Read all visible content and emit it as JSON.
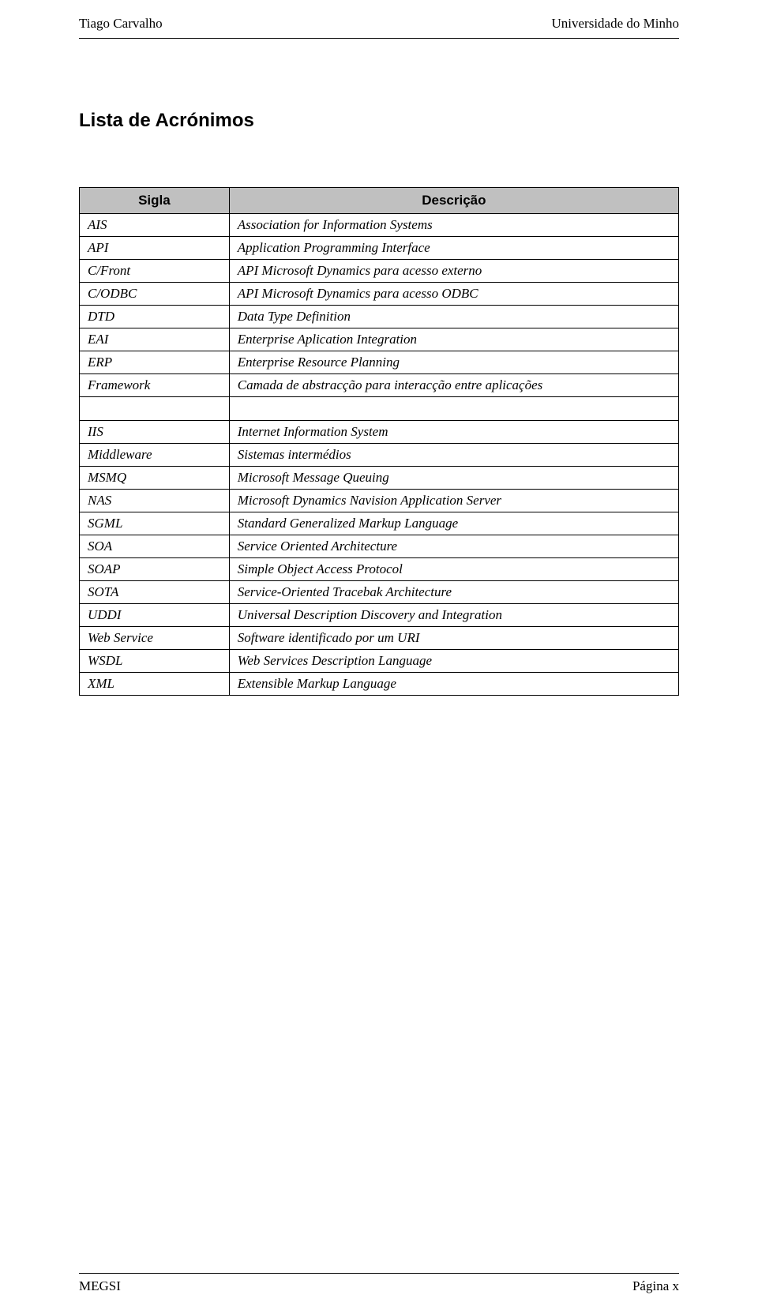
{
  "header": {
    "left": "Tiago Carvalho",
    "right": "Universidade do Minho"
  },
  "heading": "Lista de Acrónimos",
  "table": {
    "columns": [
      "Sigla",
      "Descrição"
    ],
    "header_bg_color": "#c0c0c0",
    "border_color": "#000000",
    "font_size": 17,
    "col_widths": [
      "25%",
      "75%"
    ],
    "section1": [
      {
        "sigla": "AIS",
        "descricao": "Association for Information Systems"
      },
      {
        "sigla": "API",
        "descricao": "Application Programming Interface"
      },
      {
        "sigla": "C/Front",
        "descricao": "API Microsoft Dynamics para acesso externo"
      },
      {
        "sigla": "C/ODBC",
        "descricao": "API Microsoft Dynamics para acesso ODBC"
      },
      {
        "sigla": "DTD",
        "descricao": "Data Type Definition"
      },
      {
        "sigla": "EAI",
        "descricao": "Enterprise Aplication Integration"
      },
      {
        "sigla": "ERP",
        "descricao": "Enterprise Resource Planning"
      },
      {
        "sigla": "Framework",
        "descricao": "Camada de abstracção para interacção entre aplicações"
      }
    ],
    "section2": [
      {
        "sigla": "IIS",
        "descricao": "Internet Information System"
      },
      {
        "sigla": "Middleware",
        "descricao": "Sistemas intermédios"
      },
      {
        "sigla": "MSMQ",
        "descricao": "Microsoft Message Queuing"
      },
      {
        "sigla": "NAS",
        "descricao": "Microsoft Dynamics Navision Application Server"
      },
      {
        "sigla": "SGML",
        "descricao": "Standard Generalized Markup Language"
      },
      {
        "sigla": "SOA",
        "descricao": "Service Oriented Architecture"
      },
      {
        "sigla": "SOAP",
        "descricao": "Simple Object Access Protocol"
      },
      {
        "sigla": "SOTA",
        "descricao": "Service-Oriented Tracebak Architecture"
      },
      {
        "sigla": "UDDI",
        "descricao": "Universal Description Discovery and Integration"
      },
      {
        "sigla": "Web Service",
        "descricao": "Software identificado por um URI"
      },
      {
        "sigla": "WSDL",
        "descricao": "Web Services Description Language"
      },
      {
        "sigla": "XML",
        "descricao": "Extensible Markup Language"
      }
    ]
  },
  "footer": {
    "left": "MEGSI",
    "right": "Página x"
  },
  "styling": {
    "page_bg": "#ffffff",
    "text_color": "#000000",
    "heading_fontsize": 24,
    "body_fontsize": 17,
    "heading_font": "Arial",
    "body_font": "Georgia"
  }
}
